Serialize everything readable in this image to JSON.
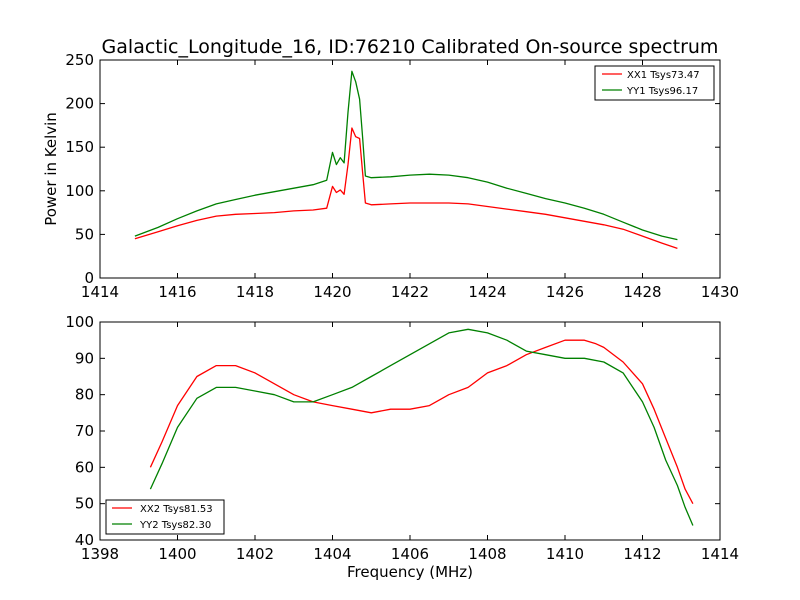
{
  "chart_data": [
    {
      "type": "line",
      "title": "Galactic_Longitude_16, ID:76210 Calibrated On-source spectrum",
      "xlabel": "",
      "ylabel": "Power in Kelvin",
      "xlim": [
        1414,
        1430
      ],
      "ylim": [
        0,
        250
      ],
      "xticks": [
        1414,
        1416,
        1418,
        1420,
        1422,
        1424,
        1426,
        1428,
        1430
      ],
      "yticks": [
        0,
        50,
        100,
        150,
        200,
        250
      ],
      "grid": false,
      "legend_position": "top-right",
      "series": [
        {
          "name": "XX1 Tsys73.47",
          "color": "#ff0000",
          "points": [
            [
              1414.9,
              45
            ],
            [
              1415.5,
              53
            ],
            [
              1416,
              60
            ],
            [
              1416.5,
              66
            ],
            [
              1417,
              71
            ],
            [
              1417.5,
              73
            ],
            [
              1418,
              74
            ],
            [
              1418.5,
              75
            ],
            [
              1419,
              77
            ],
            [
              1419.5,
              78
            ],
            [
              1419.85,
              80
            ],
            [
              1420.0,
              105
            ],
            [
              1420.1,
              98
            ],
            [
              1420.2,
              101
            ],
            [
              1420.3,
              96
            ],
            [
              1420.4,
              130
            ],
            [
              1420.5,
              172
            ],
            [
              1420.6,
              162
            ],
            [
              1420.7,
              160
            ],
            [
              1420.78,
              120
            ],
            [
              1420.85,
              86
            ],
            [
              1421,
              84
            ],
            [
              1421.5,
              85
            ],
            [
              1422,
              86
            ],
            [
              1422.5,
              86
            ],
            [
              1423,
              86
            ],
            [
              1423.5,
              85
            ],
            [
              1424,
              82
            ],
            [
              1424.5,
              79
            ],
            [
              1425,
              76
            ],
            [
              1425.5,
              73
            ],
            [
              1426,
              69
            ],
            [
              1426.5,
              65
            ],
            [
              1427,
              61
            ],
            [
              1427.5,
              56
            ],
            [
              1428,
              48
            ],
            [
              1428.5,
              40
            ],
            [
              1428.9,
              34
            ]
          ]
        },
        {
          "name": "YY1 Tsys96.17",
          "color": "#008000",
          "points": [
            [
              1414.9,
              48
            ],
            [
              1415.5,
              58
            ],
            [
              1416,
              68
            ],
            [
              1416.5,
              77
            ],
            [
              1417,
              85
            ],
            [
              1417.5,
              90
            ],
            [
              1418,
              95
            ],
            [
              1418.5,
              99
            ],
            [
              1419,
              103
            ],
            [
              1419.5,
              107
            ],
            [
              1419.85,
              112
            ],
            [
              1420.0,
              144
            ],
            [
              1420.1,
              130
            ],
            [
              1420.2,
              138
            ],
            [
              1420.3,
              132
            ],
            [
              1420.4,
              190
            ],
            [
              1420.5,
              237
            ],
            [
              1420.6,
              225
            ],
            [
              1420.7,
              205
            ],
            [
              1420.78,
              160
            ],
            [
              1420.85,
              117
            ],
            [
              1421,
              115
            ],
            [
              1421.5,
              116
            ],
            [
              1422,
              118
            ],
            [
              1422.5,
              119
            ],
            [
              1423,
              118
            ],
            [
              1423.5,
              115
            ],
            [
              1424,
              110
            ],
            [
              1424.5,
              103
            ],
            [
              1425,
              97
            ],
            [
              1425.5,
              91
            ],
            [
              1426,
              86
            ],
            [
              1426.5,
              80
            ],
            [
              1427,
              73
            ],
            [
              1427.5,
              64
            ],
            [
              1428,
              55
            ],
            [
              1428.5,
              48
            ],
            [
              1428.9,
              44
            ]
          ]
        }
      ]
    },
    {
      "type": "line",
      "title": "",
      "xlabel": "Frequency (MHz)",
      "ylabel": "",
      "xlim": [
        1398,
        1414
      ],
      "ylim": [
        40,
        100
      ],
      "xticks": [
        1398,
        1400,
        1402,
        1404,
        1406,
        1408,
        1410,
        1412,
        1414
      ],
      "yticks": [
        40,
        50,
        60,
        70,
        80,
        90,
        100
      ],
      "grid": false,
      "legend_position": "bottom-left",
      "series": [
        {
          "name": "XX2 Tsys81.53",
          "color": "#ff0000",
          "points": [
            [
              1399.3,
              60
            ],
            [
              1399.6,
              67
            ],
            [
              1400,
              77
            ],
            [
              1400.5,
              85
            ],
            [
              1401,
              88
            ],
            [
              1401.5,
              88
            ],
            [
              1402,
              86
            ],
            [
              1402.5,
              83
            ],
            [
              1403,
              80
            ],
            [
              1403.5,
              78
            ],
            [
              1404,
              77
            ],
            [
              1404.5,
              76
            ],
            [
              1405,
              75
            ],
            [
              1405.5,
              76
            ],
            [
              1406,
              76
            ],
            [
              1406.5,
              77
            ],
            [
              1407,
              80
            ],
            [
              1407.5,
              82
            ],
            [
              1408,
              86
            ],
            [
              1408.5,
              88
            ],
            [
              1409,
              91
            ],
            [
              1409.5,
              93
            ],
            [
              1410,
              95
            ],
            [
              1410.5,
              95
            ],
            [
              1410.8,
              94
            ],
            [
              1411,
              93
            ],
            [
              1411.5,
              89
            ],
            [
              1412,
              83
            ],
            [
              1412.3,
              76
            ],
            [
              1412.6,
              68
            ],
            [
              1412.9,
              60
            ],
            [
              1413.1,
              54
            ],
            [
              1413.3,
              50
            ]
          ]
        },
        {
          "name": "YY2 Tsys82.30",
          "color": "#008000",
          "points": [
            [
              1399.3,
              54
            ],
            [
              1399.6,
              61
            ],
            [
              1400,
              71
            ],
            [
              1400.5,
              79
            ],
            [
              1401,
              82
            ],
            [
              1401.5,
              82
            ],
            [
              1402,
              81
            ],
            [
              1402.5,
              80
            ],
            [
              1403,
              78
            ],
            [
              1403.5,
              78
            ],
            [
              1404,
              80
            ],
            [
              1404.5,
              82
            ],
            [
              1405,
              85
            ],
            [
              1405.5,
              88
            ],
            [
              1406,
              91
            ],
            [
              1406.5,
              94
            ],
            [
              1407,
              97
            ],
            [
              1407.5,
              98
            ],
            [
              1408,
              97
            ],
            [
              1408.5,
              95
            ],
            [
              1409,
              92
            ],
            [
              1409.5,
              91
            ],
            [
              1410,
              90
            ],
            [
              1410.5,
              90
            ],
            [
              1411,
              89
            ],
            [
              1411.5,
              86
            ],
            [
              1412,
              78
            ],
            [
              1412.3,
              71
            ],
            [
              1412.6,
              62
            ],
            [
              1412.9,
              55
            ],
            [
              1413.1,
              49
            ],
            [
              1413.3,
              44
            ]
          ]
        }
      ]
    }
  ]
}
